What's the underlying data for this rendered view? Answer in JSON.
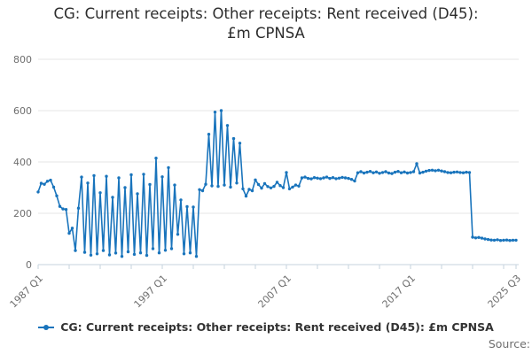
{
  "title": {
    "line1": "CG: Current receipts: Other receipts: Rent received (D45):",
    "line2": "£m CPNSA",
    "full": "CG: Current receipts: Other receipts: Rent received (D45): £m CPNSA"
  },
  "legend": {
    "label": "CG: Current receipts: Other receipts: Rent received (D45): £m CPNSA"
  },
  "source_label": "Source:",
  "colors": {
    "line": "#1974bc",
    "grid": "#e6e6e6",
    "axis": "#c6d3de",
    "tick_text": "#6e6e6e",
    "title_text": "#2d2d2d",
    "legend_text": "#333333"
  },
  "chart_data": {
    "type": "line",
    "title": "CG: Current receipts: Other receipts: Rent received (D45): £m CPNSA",
    "series_name": "CG: Current receipts: Other receipts: Rent received (D45): £m CPNSA",
    "unit": "£m",
    "frequency": "quarterly",
    "x_start": "1987 Q1",
    "x_end": "2025 Q3",
    "ylim": [
      0,
      800
    ],
    "y_ticks": [
      0,
      200,
      400,
      600,
      800
    ],
    "grid": "horizontal-only",
    "legend_position": "bottom",
    "markers": true,
    "x_axis": {
      "minor_tick_every_quarters": 10,
      "labels": [
        {
          "position": 0,
          "text": "1987 Q1"
        },
        {
          "position": 40,
          "text": "1997 Q1"
        },
        {
          "position": 80,
          "text": "2007 Q1"
        },
        {
          "position": 120,
          "text": "2017 Q1"
        },
        {
          "position": 154,
          "text": "2025 Q3"
        }
      ]
    },
    "values": [
      283,
      317,
      313,
      325,
      329,
      302,
      268,
      227,
      217,
      215,
      122,
      142,
      55,
      220,
      341,
      48,
      318,
      37,
      347,
      42,
      280,
      55,
      344,
      38,
      262,
      45,
      338,
      32,
      300,
      50,
      350,
      40,
      276,
      46,
      352,
      36,
      312,
      62,
      415,
      46,
      342,
      56,
      378,
      62,
      310,
      118,
      252,
      42,
      226,
      46,
      224,
      32,
      292,
      288,
      313,
      508,
      307,
      594,
      305,
      600,
      310,
      542,
      302,
      491,
      318,
      473,
      295,
      267,
      293,
      288,
      330,
      312,
      298,
      316,
      304,
      299,
      305,
      321,
      308,
      300,
      359,
      295,
      302,
      310,
      306,
      338,
      341,
      336,
      334,
      339,
      337,
      335,
      338,
      341,
      336,
      339,
      335,
      337,
      340,
      338,
      336,
      332,
      326,
      358,
      362,
      357,
      360,
      363,
      358,
      361,
      356,
      359,
      362,
      357,
      355,
      360,
      363,
      358,
      361,
      357,
      359,
      362,
      393,
      357,
      360,
      364,
      367,
      368,
      366,
      368,
      365,
      362,
      359,
      358,
      360,
      361,
      359,
      358,
      360,
      359,
      107,
      104,
      106,
      103,
      100,
      98,
      96,
      95,
      97,
      94,
      95,
      96,
      94,
      95,
      95
    ]
  }
}
